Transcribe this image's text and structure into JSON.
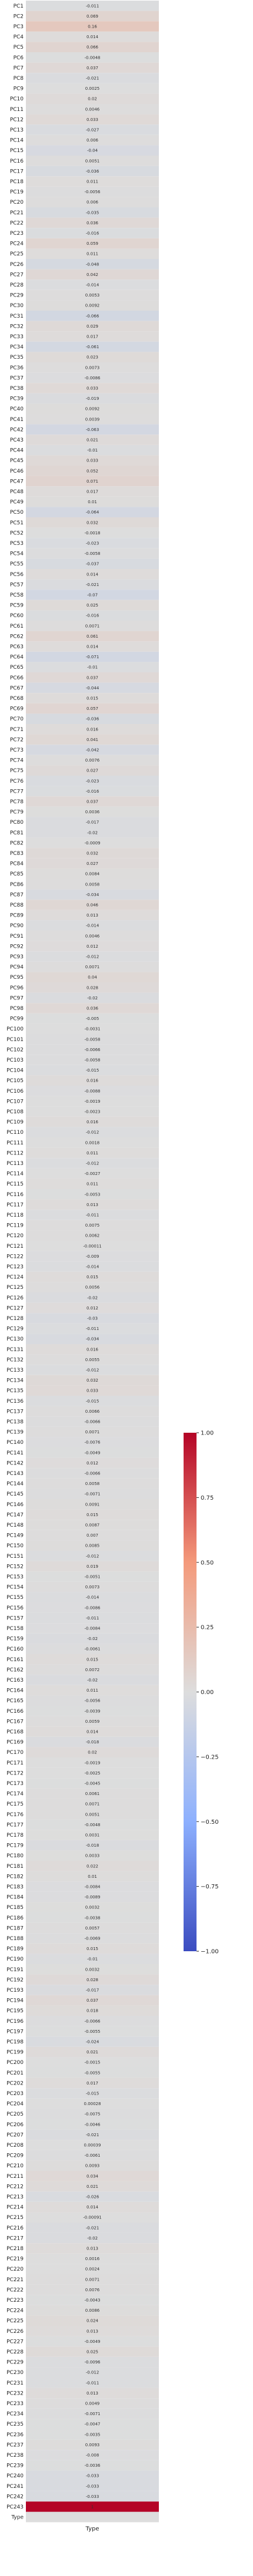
{
  "chart_data": {
    "type": "heatmap",
    "title": "",
    "xlabel": "",
    "ylabel": "",
    "columns": [
      "Type"
    ],
    "rows": [
      "PC1",
      "PC2",
      "PC3",
      "PC4",
      "PC5",
      "PC6",
      "PC7",
      "PC8",
      "PC9",
      "PC10",
      "PC11",
      "PC12",
      "PC13",
      "PC14",
      "PC15",
      "PC16",
      "PC17",
      "PC18",
      "PC19",
      "PC20",
      "PC21",
      "PC22",
      "PC23",
      "PC24",
      "PC25",
      "PC26",
      "PC27",
      "PC28",
      "PC29",
      "PC30",
      "PC31",
      "PC32",
      "PC33",
      "PC34",
      "PC35",
      "PC36",
      "PC37",
      "PC38",
      "PC39",
      "PC40",
      "PC41",
      "PC42",
      "PC43",
      "PC44",
      "PC45",
      "PC46",
      "PC47",
      "PC48",
      "PC49",
      "PC50",
      "PC51",
      "PC52",
      "PC53",
      "PC54",
      "PC55",
      "PC56",
      "PC57",
      "PC58",
      "PC59",
      "PC60",
      "PC61",
      "PC62",
      "PC63",
      "PC64",
      "PC65",
      "PC66",
      "PC67",
      "PC68",
      "PC69",
      "PC70",
      "PC71",
      "PC72",
      "PC73",
      "PC74",
      "PC75",
      "PC76",
      "PC77",
      "PC78",
      "PC79",
      "PC80",
      "PC81",
      "PC82",
      "PC83",
      "PC84",
      "PC85",
      "PC86",
      "PC87",
      "PC88",
      "PC89",
      "PC90",
      "PC91",
      "PC92",
      "PC93",
      "PC94",
      "PC95",
      "PC96",
      "PC97",
      "PC98",
      "PC99",
      "PC100",
      "PC101",
      "PC102",
      "PC103",
      "PC104",
      "PC105",
      "PC106",
      "PC107",
      "PC108",
      "PC109",
      "PC110",
      "PC111",
      "PC112",
      "PC113",
      "PC114",
      "PC115",
      "PC116",
      "PC117",
      "PC118",
      "PC119",
      "PC120",
      "PC121",
      "PC122",
      "PC123",
      "PC124",
      "PC125",
      "PC126",
      "PC127",
      "PC128",
      "PC129",
      "PC130",
      "PC131",
      "PC132",
      "PC133",
      "PC134",
      "PC135",
      "PC136",
      "PC137",
      "PC138",
      "PC139",
      "PC140",
      "PC141",
      "PC142",
      "PC143",
      "PC144",
      "PC145",
      "PC146",
      "PC147",
      "PC148",
      "PC149",
      "PC150",
      "PC151",
      "PC152",
      "PC153",
      "PC154",
      "PC155",
      "PC156",
      "PC157",
      "PC158",
      "PC159",
      "PC160",
      "PC161",
      "PC162",
      "PC163",
      "PC164",
      "PC165",
      "PC166",
      "PC167",
      "PC168",
      "PC169",
      "PC170",
      "PC171",
      "PC172",
      "PC173",
      "PC174",
      "PC175",
      "PC176",
      "PC177",
      "PC178",
      "PC179",
      "PC180",
      "PC181",
      "PC182",
      "PC183",
      "PC184",
      "PC185",
      "PC186",
      "PC187",
      "PC188",
      "PC189",
      "PC190",
      "PC191",
      "PC192",
      "PC193",
      "PC194",
      "PC195",
      "PC196",
      "PC197",
      "PC198",
      "PC199",
      "PC200",
      "PC201",
      "PC202",
      "PC203",
      "PC204",
      "PC205",
      "PC206",
      "PC207",
      "PC208",
      "PC209",
      "PC210",
      "PC211",
      "PC212",
      "PC213",
      "PC214",
      "PC215",
      "PC216",
      "PC217",
      "PC218",
      "PC219",
      "PC220",
      "PC221",
      "PC222",
      "PC223",
      "PC224",
      "PC225",
      "PC226",
      "PC227",
      "PC228",
      "PC229",
      "PC230",
      "PC231",
      "PC232",
      "PC233",
      "PC234",
      "PC235",
      "PC236",
      "PC237",
      "PC238",
      "PC239",
      "PC240",
      "PC241",
      "PC242",
      "PC243",
      "Type"
    ],
    "values": [
      -0.011,
      0.069,
      0.16,
      0.014,
      0.066,
      -0.0048,
      0.037,
      -0.021,
      0.0025,
      0.02,
      0.0046,
      0.033,
      -0.027,
      0.006,
      -0.04,
      0.0051,
      -0.036,
      0.011,
      -0.0056,
      0.006,
      -0.035,
      0.036,
      -0.016,
      0.059,
      0.011,
      -0.048,
      0.042,
      -0.014,
      0.0053,
      0.0092,
      -0.066,
      0.029,
      0.017,
      -0.061,
      0.023,
      0.0073,
      -0.0086,
      0.033,
      -0.019,
      0.0092,
      0.0039,
      -0.063,
      0.021,
      -0.01,
      0.033,
      0.052,
      0.071,
      0.017,
      0.01,
      -0.064,
      0.032,
      -0.0018,
      -0.023,
      -0.0058,
      -0.037,
      0.014,
      -0.021,
      -0.07,
      0.025,
      -0.016,
      0.0071,
      0.061,
      0.014,
      -0.071,
      -0.01,
      0.037,
      -0.044,
      0.015,
      0.057,
      -0.036,
      0.016,
      0.041,
      -0.042,
      0.0076,
      0.027,
      -0.023,
      -0.016,
      0.037,
      0.0036,
      -0.017,
      -0.02,
      -0.0009,
      0.032,
      0.027,
      0.0084,
      0.0058,
      -0.034,
      0.046,
      0.013,
      -0.014,
      0.0046,
      0.012,
      -0.012,
      0.0071,
      0.04,
      0.028,
      -0.02,
      0.036,
      -0.005,
      -0.0031,
      -0.0058,
      -0.0066,
      -0.0058,
      -0.015,
      0.016,
      -0.0088,
      -0.0019,
      -0.0023,
      0.016,
      -0.012,
      0.0018,
      0.011,
      -0.012,
      -0.0027,
      0.011,
      -0.0053,
      0.013,
      -0.011,
      0.0075,
      0.0062,
      -0.00011,
      -0.009,
      -0.014,
      0.015,
      0.0056,
      -0.02,
      0.012,
      -0.03,
      -0.011,
      -0.034,
      0.016,
      0.0055,
      -0.012,
      0.032,
      0.033,
      -0.015,
      0.0066,
      -0.0066,
      0.0071,
      -0.0076,
      -0.0049,
      0.012,
      -0.0066,
      0.0058,
      -0.0071,
      0.0091,
      0.015,
      0.0087,
      0.007,
      0.0085,
      -0.012,
      0.019,
      -0.0051,
      0.0073,
      -0.014,
      -0.0086,
      -0.011,
      -0.0084,
      -0.02,
      -0.0061,
      0.015,
      0.0072,
      -0.02,
      0.011,
      -0.0056,
      -0.0039,
      0.0059,
      0.014,
      -0.018,
      0.02,
      -0.0019,
      -0.0025,
      -0.0045,
      0.0061,
      0.0071,
      0.0051,
      -0.0048,
      0.0031,
      -0.018,
      0.0033,
      0.022,
      0.01,
      -0.0084,
      -0.0089,
      0.0032,
      -0.0038,
      0.0057,
      -0.0069,
      0.015,
      -0.01,
      0.0032,
      0.028,
      -0.017,
      0.037,
      0.018,
      -0.0066,
      -0.0055,
      -0.024,
      0.021,
      -0.0015,
      -0.0055,
      0.017,
      -0.015,
      0.00028,
      -0.0075,
      -0.0046,
      -0.021,
      0.00039,
      -0.0061,
      0.0093,
      0.034,
      0.021,
      -0.026,
      0.014,
      -0.00091,
      -0.021,
      -0.02,
      0.013,
      0.0016,
      0.0024,
      0.0071,
      0.0076,
      -0.0043,
      0.0086,
      0.024,
      0.013,
      -0.0049,
      0.025,
      -0.0096,
      -0.012,
      -0.011,
      0.013,
      0.0049,
      -0.0071,
      -0.0047,
      -0.0035,
      0.0093,
      -0.008,
      -0.0036,
      -0.033,
      -0.033,
      -0.033,
      1
    ],
    "value_labels": [
      "-0.011",
      "0.069",
      "0.16",
      "0.014",
      "0.066",
      "-0.0048",
      "0.037",
      "-0.021",
      "0.0025",
      "0.02",
      "0.0046",
      "0.033",
      "-0.027",
      "0.006",
      "-0.04",
      "0.0051",
      "-0.036",
      "0.011",
      "-0.0056",
      "0.006",
      "-0.035",
      "0.036",
      "-0.016",
      "0.059",
      "0.011",
      "-0.048",
      "0.042",
      "-0.014",
      "0.0053",
      "0.0092",
      "-0.066",
      "0.029",
      "0.017",
      "-0.061",
      "0.023",
      "0.0073",
      "-0.0086",
      "0.033",
      "-0.019",
      "0.0092",
      "0.0039",
      "-0.063",
      "0.021",
      "-0.01",
      "0.033",
      "0.052",
      "0.071",
      "0.017",
      "0.01",
      "-0.064",
      "0.032",
      "-0.0018",
      "-0.023",
      "-0.0058",
      "-0.037",
      "0.014",
      "-0.021",
      "-0.07",
      "0.025",
      "-0.016",
      "0.0071",
      "0.061",
      "0.014",
      "-0.071",
      "-0.01",
      "0.037",
      "-0.044",
      "0.015",
      "0.057",
      "-0.036",
      "0.016",
      "0.041",
      "-0.042",
      "0.0076",
      "0.027",
      "-0.023",
      "-0.016",
      "0.037",
      "0.0036",
      "-0.017",
      "-0.02",
      "-0.0009",
      "0.032",
      "0.027",
      "0.0084",
      "0.0058",
      "-0.034",
      "0.046",
      "0.013",
      "-0.014",
      "0.0046",
      "0.012",
      "-0.012",
      "0.0071",
      "0.04",
      "0.028",
      "-0.02",
      "0.036",
      "-0.005",
      "-0.0031",
      "-0.0058",
      "-0.0066",
      "-0.0058",
      "-0.015",
      "0.016",
      "-0.0088",
      "-0.0019",
      "-0.0023",
      "0.016",
      "-0.012",
      "0.0018",
      "0.011",
      "-0.012",
      "-0.0027",
      "0.011",
      "-0.0053",
      "0.013",
      "-0.011",
      "0.0075",
      "0.0062",
      "-0.00011",
      "-0.009",
      "-0.014",
      "0.015",
      "0.0056",
      "-0.02",
      "0.012",
      "-0.03",
      "-0.011",
      "-0.034",
      "0.016",
      "0.0055",
      "-0.012",
      "0.032",
      "0.033",
      "-0.015",
      "0.0066",
      "-0.0066",
      "0.0071",
      "-0.0076",
      "-0.0049",
      "0.012",
      "-0.0066",
      "0.0058",
      "-0.0071",
      "0.0091",
      "0.015",
      "0.0087",
      "0.007",
      "0.0085",
      "-0.012",
      "0.019",
      "-0.0051",
      "0.0073",
      "-0.014",
      "-0.0086",
      "-0.011",
      "-0.0084",
      "-0.02",
      "-0.0061",
      "0.015",
      "0.0072",
      "-0.02",
      "0.011",
      "-0.0056",
      "-0.0039",
      "0.0059",
      "0.014",
      "-0.018",
      "0.02",
      "-0.0019",
      "-0.0025",
      "-0.0045",
      "0.0061",
      "0.0071",
      "0.0051",
      "-0.0048",
      "0.0031",
      "-0.018",
      "0.0033",
      "0.022",
      "0.01",
      "-0.0084",
      "-0.0089",
      "0.0032",
      "-0.0038",
      "0.0057",
      "-0.0069",
      "0.015",
      "-0.01",
      "0.0032",
      "0.028",
      "-0.017",
      "0.037",
      "0.018",
      "-0.0066",
      "-0.0055",
      "-0.024",
      "0.021",
      "-0.0015",
      "-0.0055",
      "0.017",
      "-0.015",
      "0.00028",
      "-0.0075",
      "-0.0046",
      "-0.021",
      "0.00039",
      "-0.0061",
      "0.0093",
      "0.034",
      "0.021",
      "-0.026",
      "0.014",
      "-0.00091",
      "-0.021",
      "-0.02",
      "0.013",
      "0.0016",
      "0.0024",
      "0.0071",
      "0.0076",
      "-0.0043",
      "0.0086",
      "0.024",
      "0.013",
      "-0.0049",
      "0.025",
      "-0.0096",
      "-0.012",
      "-0.011",
      "0.013",
      "0.0049",
      "-0.0071",
      "-0.0047",
      "-0.0035",
      "0.0093",
      "-0.008",
      "-0.0036",
      "-0.033",
      "-0.033",
      "-0.033",
      "1"
    ],
    "vmin": -1,
    "vmax": 1,
    "colormap": "coolwarm",
    "colors": {
      "low": "#3b4cc0",
      "mid": "#dddddd",
      "high": "#b40426"
    },
    "colorbar": {
      "placement": "right",
      "ticks": [
        1.0,
        0.75,
        0.5,
        0.25,
        0.0,
        -0.25,
        -0.5,
        -0.75,
        -1.0
      ],
      "tick_labels": [
        "1.00",
        "0.75",
        "0.50",
        "0.25",
        "0.00",
        "−0.25",
        "−0.50",
        "−0.75",
        "−1.00"
      ]
    }
  }
}
